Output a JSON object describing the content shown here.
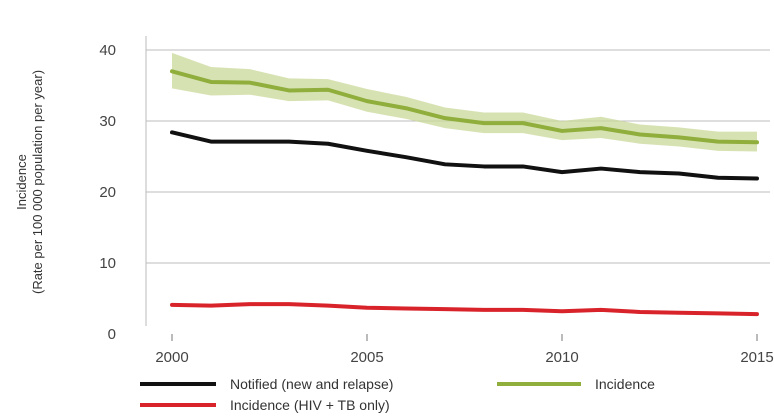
{
  "chart_data": {
    "type": "line",
    "title": "",
    "xlabel": "",
    "ylabel": [
      "Incidence",
      "(Rate per 100 000 population per year)"
    ],
    "xlim": [
      2000,
      2015
    ],
    "ylim": [
      0,
      40
    ],
    "xticks": [
      "2000",
      "2005",
      "2010",
      "2015"
    ],
    "yticks": [
      "0",
      "10",
      "20",
      "30",
      "40"
    ],
    "grid": "horizontal",
    "legend_position": "bottom",
    "x": [
      2000,
      2001,
      2002,
      2003,
      2004,
      2005,
      2006,
      2007,
      2008,
      2009,
      2010,
      2011,
      2012,
      2013,
      2014,
      2015
    ],
    "series": [
      {
        "name": "Notified (new and relapse)",
        "color": "#111111",
        "values": [
          28.4,
          27.1,
          27.1,
          27.1,
          26.8,
          25.8,
          24.9,
          23.9,
          23.6,
          23.6,
          22.8,
          23.3,
          22.8,
          22.6,
          22.0,
          21.9
        ]
      },
      {
        "name": "Incidence",
        "color": "#8fae3c",
        "band_color": "#c9d89a",
        "values": [
          37.0,
          35.5,
          35.4,
          34.3,
          34.4,
          32.8,
          31.8,
          30.4,
          29.7,
          29.7,
          28.6,
          29.0,
          28.1,
          27.7,
          27.1,
          27.0
        ],
        "lower": [
          34.6,
          33.6,
          33.7,
          32.8,
          32.9,
          31.3,
          30.3,
          29.0,
          28.3,
          28.3,
          27.3,
          27.6,
          26.8,
          26.4,
          25.8,
          25.7
        ],
        "upper": [
          39.6,
          37.6,
          37.3,
          36.0,
          35.9,
          34.5,
          33.4,
          31.9,
          31.2,
          31.2,
          30.0,
          30.6,
          29.5,
          29.1,
          28.5,
          28.5
        ]
      },
      {
        "name": "Incidence (HIV + TB only)",
        "color": "#d9232a",
        "values": [
          4.1,
          4.0,
          4.2,
          4.2,
          4.0,
          3.7,
          3.6,
          3.5,
          3.4,
          3.4,
          3.2,
          3.4,
          3.1,
          3.0,
          2.9,
          2.8
        ]
      }
    ]
  }
}
